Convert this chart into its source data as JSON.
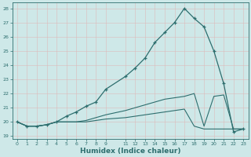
{
  "xlabel": "Humidex (Indice chaleur)",
  "bg_color": "#cee8e8",
  "grid_color": "#aacccc",
  "line_color": "#2d6e6e",
  "xlim": [
    -0.5,
    23.5
  ],
  "ylim": [
    18.8,
    28.4
  ],
  "xticks": [
    0,
    1,
    2,
    3,
    4,
    5,
    6,
    7,
    8,
    9,
    11,
    12,
    13,
    14,
    15,
    16,
    17,
    18,
    19,
    20,
    21,
    22,
    23
  ],
  "yticks": [
    19,
    20,
    21,
    22,
    23,
    24,
    25,
    26,
    27,
    28
  ],
  "line1_x": [
    0,
    1,
    2,
    3,
    4,
    5,
    6,
    7,
    8,
    9,
    11,
    12,
    13,
    14,
    15,
    16,
    17,
    18,
    19,
    20,
    21,
    22,
    23
  ],
  "line1_y": [
    20.0,
    19.7,
    19.7,
    19.8,
    20.0,
    20.4,
    20.7,
    21.1,
    21.4,
    22.3,
    23.2,
    23.8,
    24.5,
    25.6,
    26.3,
    27.0,
    28.0,
    27.3,
    26.7,
    25.0,
    22.7,
    19.3,
    19.5
  ],
  "line2_x": [
    0,
    1,
    2,
    3,
    4,
    5,
    6,
    7,
    8,
    9,
    11,
    12,
    13,
    14,
    15,
    16,
    17,
    18,
    19,
    20,
    21,
    22,
    23
  ],
  "line2_y": [
    20.0,
    19.7,
    19.7,
    19.8,
    20.0,
    20.0,
    20.0,
    20.1,
    20.3,
    20.5,
    20.8,
    21.0,
    21.2,
    21.4,
    21.6,
    21.7,
    21.8,
    22.0,
    19.7,
    21.8,
    21.9,
    19.5,
    19.5
  ],
  "line3_x": [
    0,
    1,
    2,
    3,
    4,
    5,
    6,
    7,
    8,
    9,
    11,
    12,
    13,
    14,
    15,
    16,
    17,
    18,
    19,
    20,
    21,
    22,
    23
  ],
  "line3_y": [
    20.0,
    19.7,
    19.7,
    19.8,
    20.0,
    20.0,
    20.0,
    20.0,
    20.1,
    20.2,
    20.3,
    20.4,
    20.5,
    20.6,
    20.7,
    20.8,
    20.9,
    19.7,
    19.5,
    19.5,
    19.5,
    19.5,
    19.5
  ]
}
